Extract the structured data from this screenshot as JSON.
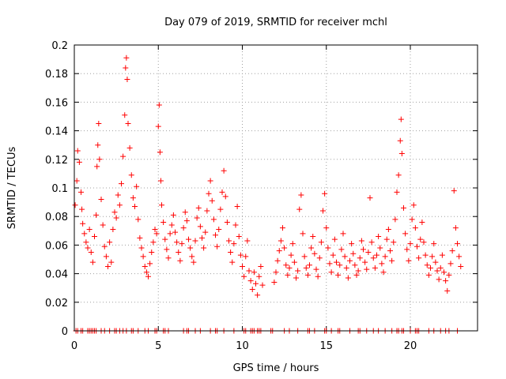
{
  "chart_data": {
    "type": "scatter",
    "title": "Day 079 of 2019, SRMTID for receiver mchl",
    "xlabel": "GPS time / hours",
    "ylabel": "SRMTID / TECUs",
    "xlim": [
      0,
      24
    ],
    "ylim": [
      0,
      0.2
    ],
    "xticks": [
      0,
      5,
      10,
      15,
      20
    ],
    "xtick_labels": [
      "0",
      "5",
      "10",
      "15",
      "20"
    ],
    "yticks": [
      0,
      0.02,
      0.04,
      0.06,
      0.08,
      0.1,
      0.12,
      0.14,
      0.16,
      0.18,
      0.2
    ],
    "ytick_labels": [
      "0",
      "0.02",
      "0.04",
      "0.06",
      "0.08",
      "0.1",
      "0.12",
      "0.14",
      "0.16",
      "0.18",
      "0.2"
    ],
    "grid": true,
    "marker": "plus",
    "marker_color": "#ff0000",
    "series": [
      {
        "name": "SRMTID",
        "points": [
          [
            0.05,
            0.088
          ],
          [
            0.15,
            0.105
          ],
          [
            0.2,
            0.126
          ],
          [
            0.3,
            0.118
          ],
          [
            0.4,
            0.097
          ],
          [
            0.45,
            0.085
          ],
          [
            0.5,
            0.075
          ],
          [
            0.6,
            0.068
          ],
          [
            0.7,
            0.062
          ],
          [
            0.8,
            0.058
          ],
          [
            0.9,
            0.071
          ],
          [
            1.0,
            0.055
          ],
          [
            1.1,
            0.048
          ],
          [
            1.2,
            0.066
          ],
          [
            1.3,
            0.081
          ],
          [
            1.35,
            0.115
          ],
          [
            1.4,
            0.13
          ],
          [
            1.45,
            0.145
          ],
          [
            1.5,
            0.12
          ],
          [
            1.6,
            0.092
          ],
          [
            1.7,
            0.074
          ],
          [
            1.8,
            0.059
          ],
          [
            1.9,
            0.052
          ],
          [
            2.0,
            0.045
          ],
          [
            2.1,
            0.062
          ],
          [
            2.2,
            0.048
          ],
          [
            2.3,
            0.071
          ],
          [
            2.4,
            0.083
          ],
          [
            2.5,
            0.079
          ],
          [
            2.6,
            0.095
          ],
          [
            2.7,
            0.088
          ],
          [
            2.8,
            0.103
          ],
          [
            2.9,
            0.122
          ],
          [
            3.0,
            0.151
          ],
          [
            3.05,
            0.184
          ],
          [
            3.1,
            0.191
          ],
          [
            3.15,
            0.176
          ],
          [
            3.2,
            0.145
          ],
          [
            3.3,
            0.128
          ],
          [
            3.4,
            0.109
          ],
          [
            3.5,
            0.093
          ],
          [
            3.6,
            0.087
          ],
          [
            3.7,
            0.101
          ],
          [
            3.8,
            0.078
          ],
          [
            3.9,
            0.065
          ],
          [
            4.0,
            0.058
          ],
          [
            4.1,
            0.052
          ],
          [
            4.2,
            0.045
          ],
          [
            4.3,
            0.041
          ],
          [
            4.4,
            0.038
          ],
          [
            4.5,
            0.047
          ],
          [
            4.6,
            0.055
          ],
          [
            4.7,
            0.062
          ],
          [
            4.8,
            0.071
          ],
          [
            4.9,
            0.068
          ],
          [
            5.0,
            0.143
          ],
          [
            5.05,
            0.158
          ],
          [
            5.1,
            0.125
          ],
          [
            5.15,
            0.105
          ],
          [
            5.2,
            0.088
          ],
          [
            5.3,
            0.076
          ],
          [
            5.4,
            0.064
          ],
          [
            5.5,
            0.057
          ],
          [
            5.6,
            0.051
          ],
          [
            5.7,
            0.068
          ],
          [
            5.8,
            0.074
          ],
          [
            5.9,
            0.081
          ],
          [
            6.0,
            0.069
          ],
          [
            6.1,
            0.062
          ],
          [
            6.2,
            0.055
          ],
          [
            6.3,
            0.049
          ],
          [
            6.4,
            0.061
          ],
          [
            6.5,
            0.072
          ],
          [
            6.6,
            0.083
          ],
          [
            6.7,
            0.077
          ],
          [
            6.8,
            0.064
          ],
          [
            6.9,
            0.058
          ],
          [
            7.0,
            0.052
          ],
          [
            7.1,
            0.048
          ],
          [
            7.2,
            0.063
          ],
          [
            7.3,
            0.079
          ],
          [
            7.4,
            0.086
          ],
          [
            7.5,
            0.073
          ],
          [
            7.6,
            0.065
          ],
          [
            7.7,
            0.058
          ],
          [
            7.8,
            0.069
          ],
          [
            7.9,
            0.084
          ],
          [
            8.0,
            0.096
          ],
          [
            8.1,
            0.105
          ],
          [
            8.2,
            0.091
          ],
          [
            8.3,
            0.078
          ],
          [
            8.4,
            0.067
          ],
          [
            8.5,
            0.059
          ],
          [
            8.6,
            0.071
          ],
          [
            8.7,
            0.085
          ],
          [
            8.8,
            0.097
          ],
          [
            8.9,
            0.112
          ],
          [
            9.0,
            0.094
          ],
          [
            9.1,
            0.076
          ],
          [
            9.2,
            0.063
          ],
          [
            9.3,
            0.055
          ],
          [
            9.4,
            0.048
          ],
          [
            9.5,
            0.061
          ],
          [
            9.6,
            0.074
          ],
          [
            9.7,
            0.087
          ],
          [
            9.8,
            0.066
          ],
          [
            9.9,
            0.053
          ],
          [
            10.0,
            0.045
          ],
          [
            10.1,
            0.038
          ],
          [
            10.2,
            0.052
          ],
          [
            10.3,
            0.063
          ],
          [
            10.4,
            0.042
          ],
          [
            10.5,
            0.035
          ],
          [
            10.6,
            0.029
          ],
          [
            10.7,
            0.041
          ],
          [
            10.8,
            0.033
          ],
          [
            10.9,
            0.025
          ],
          [
            11.0,
            0.038
          ],
          [
            11.1,
            0.045
          ],
          [
            11.2,
            0.032
          ],
          [
            11.9,
            0.034
          ],
          [
            12.0,
            0.041
          ],
          [
            12.1,
            0.049
          ],
          [
            12.2,
            0.056
          ],
          [
            12.3,
            0.063
          ],
          [
            12.4,
            0.072
          ],
          [
            12.5,
            0.058
          ],
          [
            12.6,
            0.046
          ],
          [
            12.7,
            0.039
          ],
          [
            12.8,
            0.044
          ],
          [
            12.9,
            0.053
          ],
          [
            13.0,
            0.061
          ],
          [
            13.1,
            0.048
          ],
          [
            13.2,
            0.037
          ],
          [
            13.3,
            0.042
          ],
          [
            13.4,
            0.085
          ],
          [
            13.5,
            0.095
          ],
          [
            13.6,
            0.068
          ],
          [
            13.7,
            0.052
          ],
          [
            13.8,
            0.044
          ],
          [
            13.9,
            0.039
          ],
          [
            14.0,
            0.046
          ],
          [
            14.1,
            0.058
          ],
          [
            14.2,
            0.066
          ],
          [
            14.3,
            0.054
          ],
          [
            14.4,
            0.043
          ],
          [
            14.5,
            0.038
          ],
          [
            14.6,
            0.051
          ],
          [
            14.7,
            0.062
          ],
          [
            14.8,
            0.084
          ],
          [
            14.9,
            0.096
          ],
          [
            15.0,
            0.072
          ],
          [
            15.1,
            0.058
          ],
          [
            15.2,
            0.047
          ],
          [
            15.3,
            0.041
          ],
          [
            15.4,
            0.053
          ],
          [
            15.5,
            0.064
          ],
          [
            15.6,
            0.048
          ],
          [
            15.7,
            0.039
          ],
          [
            15.8,
            0.046
          ],
          [
            15.9,
            0.057
          ],
          [
            16.0,
            0.068
          ],
          [
            16.1,
            0.052
          ],
          [
            16.2,
            0.044
          ],
          [
            16.3,
            0.037
          ],
          [
            16.4,
            0.049
          ],
          [
            16.5,
            0.061
          ],
          [
            16.6,
            0.054
          ],
          [
            16.7,
            0.046
          ],
          [
            16.8,
            0.039
          ],
          [
            16.9,
            0.042
          ],
          [
            17.0,
            0.051
          ],
          [
            17.1,
            0.063
          ],
          [
            17.2,
            0.057
          ],
          [
            17.3,
            0.048
          ],
          [
            17.4,
            0.043
          ],
          [
            17.5,
            0.055
          ],
          [
            17.6,
            0.093
          ],
          [
            17.7,
            0.062
          ],
          [
            17.8,
            0.051
          ],
          [
            17.9,
            0.044
          ],
          [
            18.0,
            0.053
          ],
          [
            18.1,
            0.066
          ],
          [
            18.2,
            0.058
          ],
          [
            18.3,
            0.047
          ],
          [
            18.4,
            0.041
          ],
          [
            18.5,
            0.052
          ],
          [
            18.6,
            0.064
          ],
          [
            18.7,
            0.071
          ],
          [
            18.8,
            0.056
          ],
          [
            18.9,
            0.049
          ],
          [
            19.0,
            0.062
          ],
          [
            19.1,
            0.078
          ],
          [
            19.2,
            0.097
          ],
          [
            19.3,
            0.109
          ],
          [
            19.4,
            0.133
          ],
          [
            19.45,
            0.148
          ],
          [
            19.5,
            0.124
          ],
          [
            19.6,
            0.086
          ],
          [
            19.7,
            0.068
          ],
          [
            19.8,
            0.057
          ],
          [
            19.9,
            0.049
          ],
          [
            20.0,
            0.061
          ],
          [
            20.1,
            0.078
          ],
          [
            20.2,
            0.088
          ],
          [
            20.3,
            0.072
          ],
          [
            20.4,
            0.059
          ],
          [
            20.5,
            0.051
          ],
          [
            20.6,
            0.064
          ],
          [
            20.7,
            0.076
          ],
          [
            20.8,
            0.062
          ],
          [
            20.9,
            0.053
          ],
          [
            21.0,
            0.046
          ],
          [
            21.1,
            0.039
          ],
          [
            21.2,
            0.044
          ],
          [
            21.3,
            0.052
          ],
          [
            21.4,
            0.061
          ],
          [
            21.5,
            0.048
          ],
          [
            21.6,
            0.042
          ],
          [
            21.7,
            0.036
          ],
          [
            21.8,
            0.044
          ],
          [
            21.9,
            0.053
          ],
          [
            22.0,
            0.041
          ],
          [
            22.1,
            0.035
          ],
          [
            22.2,
            0.028
          ],
          [
            22.3,
            0.039
          ],
          [
            22.4,
            0.047
          ],
          [
            22.5,
            0.056
          ],
          [
            22.6,
            0.098
          ],
          [
            22.7,
            0.072
          ],
          [
            22.8,
            0.061
          ],
          [
            22.9,
            0.052
          ],
          [
            23.0,
            0.045
          ]
        ],
        "zero_points": [
          0.1,
          0.2,
          0.4,
          0.5,
          0.8,
          0.9,
          1.0,
          1.1,
          1.2,
          1.3,
          1.6,
          1.8,
          2.1,
          2.4,
          2.5,
          2.7,
          2.9,
          3.1,
          3.4,
          3.5,
          3.8,
          4.2,
          4.4,
          4.8,
          4.9,
          5.3,
          5.4,
          5.6,
          6.5,
          6.7,
          6.8,
          7.2,
          7.5,
          8.1,
          8.4,
          8.5,
          8.9,
          9.5,
          10.1,
          10.2,
          10.5,
          10.6,
          10.7,
          10.9,
          11.0,
          11.1,
          11.7,
          11.8,
          12.5,
          12.8,
          13.3,
          13.9,
          14.0,
          14.3,
          14.9,
          15.0,
          15.3,
          15.7,
          15.8,
          16.4,
          16.9,
          17.0,
          17.4,
          17.8,
          18.1,
          18.5,
          18.9,
          19.2,
          19.3,
          19.5,
          19.6,
          20.0,
          20.3,
          20.4,
          20.5,
          21.1,
          21.4,
          21.8,
          22.1,
          22.3,
          22.8
        ]
      }
    ]
  }
}
